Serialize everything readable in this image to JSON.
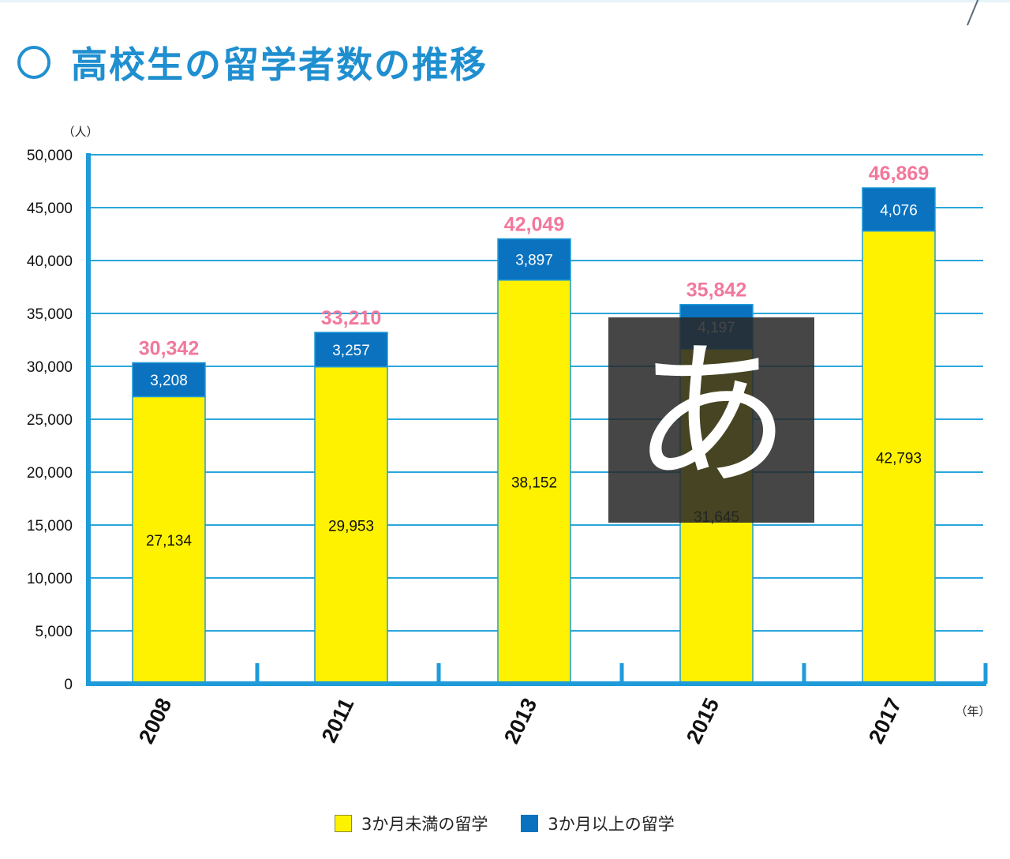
{
  "title": "高校生の留学者数の推移",
  "colors": {
    "short_term": "#fff200",
    "long_term": "#0a72bf",
    "grid": "#2aa6dc",
    "axis": "#1f9bd9",
    "total_label": "#f2789c",
    "title": "#1f8fd0"
  },
  "ime_overlay": {
    "glyph": "あ"
  },
  "legend": [
    {
      "label": "3か月未満の留学",
      "color": "#fff200"
    },
    {
      "label": "3か月以上の留学",
      "color": "#0a72bf"
    }
  ],
  "chart_data": {
    "type": "bar",
    "stacked": true,
    "categories": [
      "2008",
      "2011",
      "2013",
      "2015",
      "2017"
    ],
    "series": [
      {
        "name": "3か月未満の留学",
        "values": [
          27134,
          29953,
          38152,
          31645,
          42793
        ]
      },
      {
        "name": "3か月以上の留学",
        "values": [
          3208,
          3257,
          3897,
          4197,
          4076
        ]
      }
    ],
    "totals": [
      30342,
      33210,
      42049,
      35842,
      46869
    ],
    "value_labels": {
      "short_term": [
        "27,134",
        "29,953",
        "38,152",
        "31,645",
        "42,793"
      ],
      "long_term": [
        "3,208",
        "3,257",
        "3,897",
        "4,197",
        "4,076"
      ],
      "totals": [
        "30,342",
        "33,210",
        "42,049",
        "35,842",
        "46,869"
      ]
    },
    "ylabel": "（人）",
    "xlabel": "（年）",
    "ylim": [
      0,
      50000
    ],
    "yticks": [
      0,
      5000,
      10000,
      15000,
      20000,
      25000,
      30000,
      35000,
      40000,
      45000,
      50000
    ],
    "ytick_labels": [
      "0",
      "5,000",
      "10,000",
      "15,000",
      "20,000",
      "25,000",
      "30,000",
      "35,000",
      "40,000",
      "45,000",
      "50,000"
    ],
    "grid": true,
    "legend_position": "bottom"
  }
}
